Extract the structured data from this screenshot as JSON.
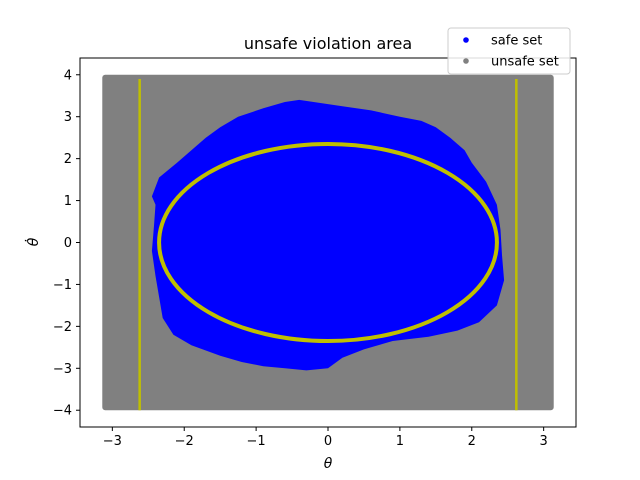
{
  "chart_data": {
    "type": "scatter",
    "title": "unsafe violation area",
    "xlabel": "θ",
    "ylabel": "θ̇",
    "xlim": [
      -3.45,
      3.45
    ],
    "ylim": [
      -4.4,
      4.4
    ],
    "xticks": [
      -3,
      -2,
      -1,
      0,
      1,
      2,
      3
    ],
    "yticks": [
      -4,
      -3,
      -2,
      -1,
      0,
      1,
      2,
      3,
      4
    ],
    "xtick_labels": [
      "−3",
      "−2",
      "−1",
      "0",
      "1",
      "2",
      "3"
    ],
    "ytick_labels": [
      "−4",
      "−3",
      "−2",
      "−1",
      "0",
      "1",
      "2",
      "3",
      "4"
    ],
    "grid": false,
    "legend_position": "top-right",
    "series": [
      {
        "name": "unsafe set",
        "color": "#808080",
        "region": "rectangle",
        "x_range": [
          -3.14,
          3.14
        ],
        "y_range": [
          -4,
          4
        ]
      },
      {
        "name": "safe set",
        "color": "#0000ff",
        "region": "polygon",
        "boundary": [
          [
            -0.4,
            3.4
          ],
          [
            -0.2,
            3.35
          ],
          [
            0.2,
            3.25
          ],
          [
            0.6,
            3.15
          ],
          [
            1.0,
            3.0
          ],
          [
            1.3,
            2.9
          ],
          [
            1.5,
            2.75
          ],
          [
            1.7,
            2.5
          ],
          [
            1.9,
            2.2
          ],
          [
            2.0,
            1.9
          ],
          [
            2.2,
            1.45
          ],
          [
            2.35,
            0.9
          ],
          [
            2.4,
            0.3
          ],
          [
            2.42,
            -0.3
          ],
          [
            2.45,
            -0.9
          ],
          [
            2.35,
            -1.5
          ],
          [
            2.1,
            -1.9
          ],
          [
            1.8,
            -2.1
          ],
          [
            1.4,
            -2.25
          ],
          [
            0.9,
            -2.35
          ],
          [
            0.5,
            -2.55
          ],
          [
            0.2,
            -2.75
          ],
          [
            0.0,
            -3.0
          ],
          [
            -0.3,
            -3.05
          ],
          [
            -0.6,
            -3.0
          ],
          [
            -0.9,
            -2.95
          ],
          [
            -1.2,
            -2.85
          ],
          [
            -1.5,
            -2.7
          ],
          [
            -1.9,
            -2.45
          ],
          [
            -2.15,
            -2.2
          ],
          [
            -2.3,
            -1.8
          ],
          [
            -2.35,
            -1.3
          ],
          [
            -2.4,
            -0.8
          ],
          [
            -2.45,
            -0.2
          ],
          [
            -2.42,
            0.4
          ],
          [
            -2.4,
            0.9
          ],
          [
            -2.45,
            1.1
          ],
          [
            -2.35,
            1.55
          ],
          [
            -2.1,
            1.9
          ],
          [
            -1.9,
            2.2
          ],
          [
            -1.7,
            2.5
          ],
          [
            -1.5,
            2.75
          ],
          [
            -1.25,
            3.0
          ],
          [
            -0.9,
            3.2
          ],
          [
            -0.6,
            3.35
          ]
        ]
      },
      {
        "name": "",
        "color": "#bfbf00",
        "region": "ellipse",
        "center": [
          0,
          0
        ],
        "radius_x": 2.35,
        "radius_y": 2.35
      },
      {
        "name": "",
        "color": "#bfbf00",
        "region": "vline",
        "x": -2.62,
        "y_range": [
          -4,
          3.9
        ]
      },
      {
        "name": "",
        "color": "#bfbf00",
        "region": "vline",
        "x": 2.62,
        "y_range": [
          -4,
          3.9
        ]
      }
    ],
    "legend": [
      {
        "label": "safe set",
        "color": "#0000ff"
      },
      {
        "label": "unsafe set",
        "color": "#808080"
      }
    ]
  }
}
